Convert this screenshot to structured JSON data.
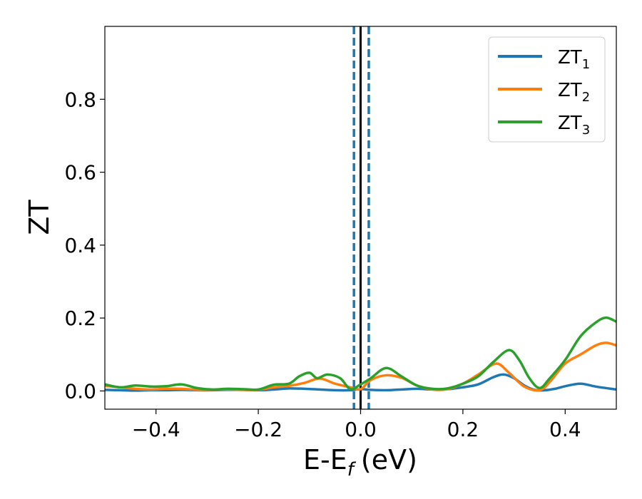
{
  "chart_data": {
    "type": "line",
    "xlabel": "E-E",
    "xlabel_sub": "f",
    "xlabel_unit": "(eV)",
    "ylabel": "ZT",
    "xlim": [
      -0.5,
      0.5
    ],
    "ylim": [
      -0.05,
      1.0
    ],
    "xticks": [
      -0.4,
      -0.2,
      0.0,
      0.2,
      0.4
    ],
    "xtick_labels": [
      "−0.4",
      "−0.2",
      "0.0",
      "0.2",
      "0.4"
    ],
    "yticks": [
      0.0,
      0.2,
      0.4,
      0.6,
      0.8
    ],
    "ytick_labels": [
      "0.0",
      "0.2",
      "0.4",
      "0.6",
      "0.8"
    ],
    "grid": false,
    "legend_position": "top-right",
    "vlines": [
      {
        "x": 0.0,
        "style": "solid",
        "color": "#000000"
      },
      {
        "x": -0.013,
        "style": "dashed",
        "color": "#1f77b4"
      },
      {
        "x": 0.016,
        "style": "dashed",
        "color": "#1f77b4"
      }
    ],
    "series": [
      {
        "name": "ZT",
        "name_sub": "1",
        "color": "#1f77b4",
        "x": [
          -0.5,
          -0.47,
          -0.44,
          -0.41,
          -0.38,
          -0.35,
          -0.32,
          -0.29,
          -0.26,
          -0.23,
          -0.2,
          -0.17,
          -0.14,
          -0.11,
          -0.08,
          -0.05,
          -0.02,
          0.0,
          0.02,
          0.05,
          0.08,
          0.11,
          0.14,
          0.17,
          0.2,
          0.23,
          0.26,
          0.28,
          0.3,
          0.32,
          0.34,
          0.36,
          0.38,
          0.4,
          0.43,
          0.46,
          0.5
        ],
        "values": [
          0.003,
          0.002,
          0.001,
          0.002,
          0.002,
          0.003,
          0.002,
          0.002,
          0.003,
          0.003,
          0.002,
          0.004,
          0.007,
          0.006,
          0.004,
          0.002,
          0.002,
          0.005,
          0.003,
          0.002,
          0.004,
          0.006,
          0.004,
          0.005,
          0.01,
          0.018,
          0.038,
          0.045,
          0.035,
          0.015,
          0.003,
          0.002,
          0.006,
          0.013,
          0.02,
          0.012,
          0.004
        ]
      },
      {
        "name": "ZT",
        "name_sub": "2",
        "color": "#ff7f0e",
        "x": [
          -0.5,
          -0.47,
          -0.44,
          -0.41,
          -0.38,
          -0.35,
          -0.32,
          -0.29,
          -0.26,
          -0.23,
          -0.2,
          -0.17,
          -0.14,
          -0.11,
          -0.08,
          -0.05,
          -0.02,
          0.0,
          0.02,
          0.05,
          0.08,
          0.11,
          0.14,
          0.17,
          0.2,
          0.23,
          0.265,
          0.29,
          0.32,
          0.35,
          0.37,
          0.4,
          0.43,
          0.46,
          0.48,
          0.5
        ],
        "values": [
          0.014,
          0.01,
          0.006,
          0.004,
          0.006,
          0.006,
          0.003,
          0.003,
          0.004,
          0.003,
          0.003,
          0.01,
          0.014,
          0.022,
          0.034,
          0.02,
          0.01,
          0.005,
          0.03,
          0.043,
          0.036,
          0.015,
          0.004,
          0.005,
          0.02,
          0.045,
          0.075,
          0.05,
          0.012,
          0.002,
          0.025,
          0.075,
          0.1,
          0.125,
          0.132,
          0.125
        ]
      },
      {
        "name": "ZT",
        "name_sub": "3",
        "color": "#2ca02c",
        "x": [
          -0.5,
          -0.47,
          -0.44,
          -0.41,
          -0.38,
          -0.35,
          -0.32,
          -0.29,
          -0.26,
          -0.23,
          -0.2,
          -0.17,
          -0.14,
          -0.12,
          -0.1,
          -0.085,
          -0.065,
          -0.04,
          -0.02,
          0.0,
          0.02,
          0.05,
          0.08,
          0.11,
          0.14,
          0.17,
          0.2,
          0.23,
          0.26,
          0.29,
          0.31,
          0.33,
          0.35,
          0.37,
          0.4,
          0.43,
          0.46,
          0.48,
          0.5
        ],
        "values": [
          0.018,
          0.01,
          0.015,
          0.012,
          0.013,
          0.018,
          0.008,
          0.004,
          0.006,
          0.005,
          0.004,
          0.017,
          0.02,
          0.04,
          0.05,
          0.035,
          0.045,
          0.035,
          0.005,
          0.018,
          0.035,
          0.063,
          0.04,
          0.015,
          0.006,
          0.007,
          0.02,
          0.04,
          0.08,
          0.112,
          0.085,
          0.035,
          0.008,
          0.035,
          0.085,
          0.15,
          0.188,
          0.201,
          0.19
        ]
      }
    ]
  }
}
